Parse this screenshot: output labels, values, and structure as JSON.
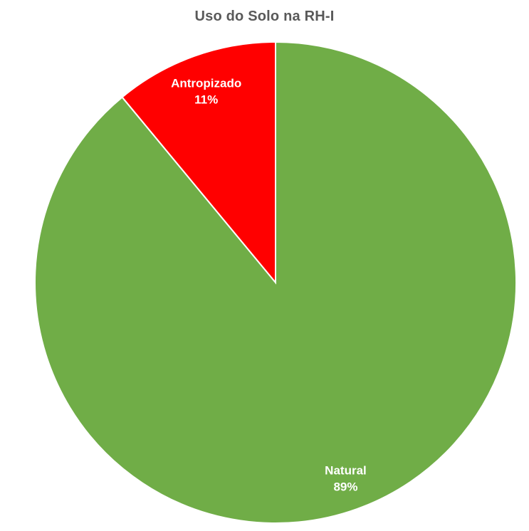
{
  "chart_data": {
    "type": "pie",
    "title": "Uso do Solo na RH-I",
    "categories": [
      "Antropizado",
      "Natural"
    ],
    "values": [
      11,
      89
    ],
    "data_labels": [
      "11%",
      "89%"
    ],
    "colors": [
      "#FF0000",
      "#70AD47"
    ],
    "legend": "none",
    "start": "12 o'clock",
    "direction": "counterclockwise"
  }
}
